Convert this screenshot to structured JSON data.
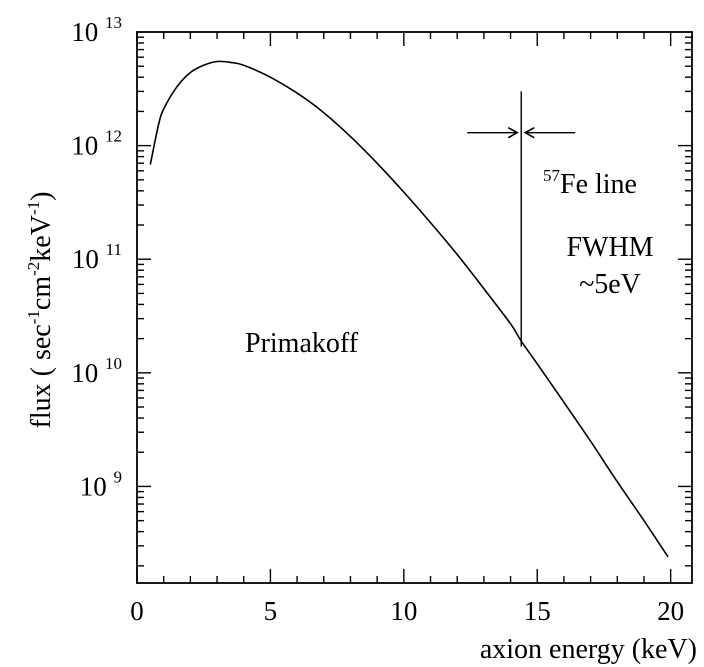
{
  "chart_data": {
    "type": "line",
    "xlabel": "axion energy (keV)",
    "ylabel": {
      "prefix": "flux ( sec",
      "exp1": "-1",
      "mid1": "cm",
      "exp2": "-2",
      "mid2": "keV",
      "exp3": "-1",
      "suffix": ")"
    },
    "xlim": [
      0,
      20.8
    ],
    "ylim_log10": [
      8.15,
      13
    ],
    "y_scale": "log",
    "grid": false,
    "x_ticks": [
      "0",
      "5",
      "10",
      "15",
      "20"
    ],
    "y_ticks": [
      {
        "base": "10",
        "exp": "13"
      },
      {
        "base": "10",
        "exp": "12"
      },
      {
        "base": "10",
        "exp": "11"
      },
      {
        "base": "10",
        "exp": "10"
      },
      {
        "base": "10",
        "exp": "9"
      }
    ],
    "series": [
      {
        "x": [
          0.5,
          0.8,
          1.0,
          1.5,
          2.0,
          2.5,
          3.0,
          3.5,
          4.0,
          5.0,
          6.0,
          7.0,
          8.0,
          9.0,
          10.0,
          11.0,
          12.0,
          13.0,
          14.0,
          14.4,
          15.0,
          16.0,
          17.0,
          18.0,
          19.0,
          19.9
        ],
        "y": [
          680000000000.0,
          1500000000000.0,
          2100000000000.0,
          3300000000000.0,
          4400000000000.0,
          5100000000000.0,
          5500000000000.0,
          5400000000000.0,
          5100000000000.0,
          4000000000000.0,
          2900000000000.0,
          1950000000000.0,
          1200000000000.0,
          700000000000.0,
          390000000000.0,
          210000000000.0,
          110000000000.0,
          55000000000.0,
          27000000000.0,
          19000000000.0,
          12000000000.0,
          5500000000.0,
          2500000000.0,
          1100000000.0,
          500000000.0,
          240000000.0
        ]
      }
    ],
    "fe_line": {
      "energy": 14.4,
      "flux_bottom": 17000000000.0,
      "flux_top": 3000000000000.0,
      "arrow_flux": 1300000000000.0
    },
    "annotations": {
      "primakoff": "Primakoff",
      "fe_isotope": "57",
      "fe_line": "Fe line",
      "fwhm": "FWHM",
      "fwhm_value": "~5eV"
    }
  }
}
